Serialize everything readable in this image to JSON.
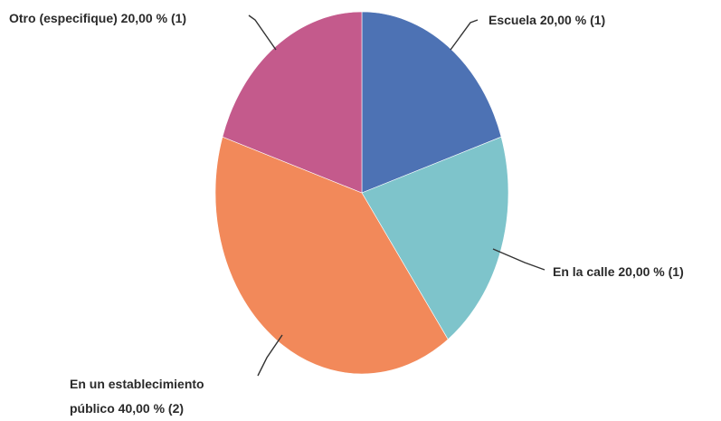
{
  "chart_data": {
    "type": "pie",
    "title": "",
    "slices": [
      {
        "label": "Escuela 20,00 % (1)",
        "value": 20,
        "count": 1,
        "color": "#4d72b4"
      },
      {
        "label": "En la calle 20,00 % (1)",
        "value": 20,
        "count": 1,
        "color": "#7ec4cb"
      },
      {
        "label_lines": [
          "En un establecimiento",
          "público 40,00 % (2)"
        ],
        "value": 40,
        "count": 2,
        "color": "#f2895a"
      },
      {
        "label": "Otro (especifique) 20,00 % (1)",
        "value": 20,
        "count": 1,
        "color": "#c45a8c"
      }
    ],
    "start_angle_deg": 0,
    "direction": "clockwise",
    "legend": "none"
  }
}
